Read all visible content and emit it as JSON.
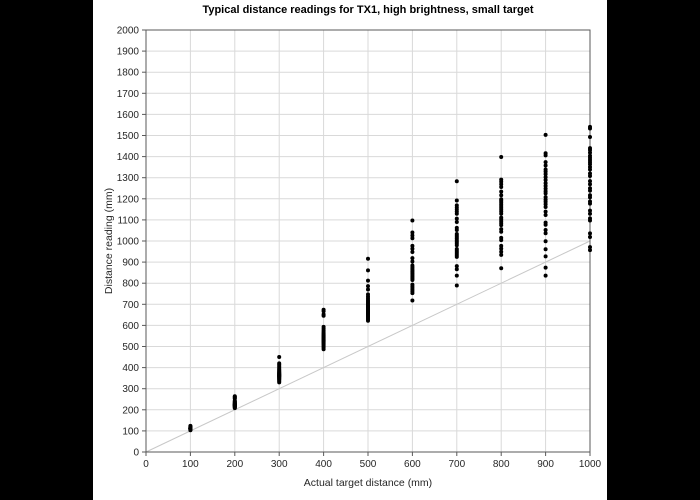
{
  "chart_data": {
    "type": "scatter",
    "title": "Typical distance readings for TX1, high brightness, small target",
    "xlabel": "Actual target distance (mm)",
    "ylabel": "Distance reading (mm)",
    "xlim": [
      0,
      1000
    ],
    "ylim": [
      0,
      2000
    ],
    "x_ticks": [
      0,
      100,
      200,
      300,
      400,
      500,
      600,
      700,
      800,
      900,
      1000
    ],
    "y_ticks": [
      0,
      100,
      200,
      300,
      400,
      500,
      600,
      700,
      800,
      900,
      1000,
      1100,
      1200,
      1300,
      1400,
      1500,
      1600,
      1700,
      1800,
      1900,
      2000
    ],
    "grid": true,
    "legend": "none",
    "colors": {
      "background": "#000000",
      "panel": "#ffffff",
      "grid": "#d9d9d9",
      "axis": "#595959",
      "marker": "#000000",
      "reference_line": "#c8c8c8"
    },
    "reference_line": {
      "name": "identity-line-y-equals-x",
      "from": [
        0,
        0
      ],
      "to": [
        1000,
        1000
      ]
    },
    "series": [
      {
        "name": "distance-readings",
        "groups": [
          {
            "x": 100,
            "readings": [
              103,
              105,
              107,
              108,
              109,
              110,
              110,
              111,
              111,
              112,
              112,
              113,
              113,
              114,
              114,
              115,
              116,
              117,
              119,
              121,
              124
            ]
          },
          {
            "x": 200,
            "readings": [
              208,
              211,
              213,
              215,
              217,
              219,
              220,
              221,
              222,
              223,
              224,
              225,
              226,
              227,
              228,
              230,
              232,
              234,
              237,
              240,
              243,
              253,
              257,
              261,
              264
            ]
          },
          {
            "x": 300,
            "readings": [
              330,
              336,
              341,
              345,
              348,
              351,
              354,
              356,
              358,
              360,
              362,
              364,
              366,
              368,
              370,
              372,
              375,
              378,
              381,
              385,
              389,
              394,
              400,
              407,
              414,
              420,
              450
            ]
          },
          {
            "x": 400,
            "readings": [
              487,
              494,
              500,
              506,
              511,
              515,
              519,
              522,
              525,
              528,
              531,
              534,
              537,
              540,
              543,
              546,
              550,
              554,
              558,
              563,
              569,
              576,
              584,
              593,
              646,
              652,
              667,
              674
            ]
          },
          {
            "x": 500,
            "readings": [
              622,
              629,
              635,
              641,
              646,
              651,
              655,
              659,
              663,
              667,
              671,
              675,
              679,
              683,
              687,
              691,
              696,
              701,
              707,
              713,
              720,
              728,
              737,
              747,
              770,
              786,
              812,
              861,
              916
            ]
          },
          {
            "x": 600,
            "readings": [
              718,
              753,
              761,
              769,
              777,
              785,
              793,
              815,
              821,
              827,
              833,
              839,
              845,
              851,
              857,
              863,
              870,
              877,
              884,
              903,
              919,
              948,
              963,
              977,
              1013,
              1026,
              1040,
              1097
            ]
          },
          {
            "x": 700,
            "readings": [
              789,
              836,
              866,
              881,
              925,
              933,
              941,
              948,
              955,
              962,
              980,
              988,
              996,
              1003,
              1011,
              1019,
              1026,
              1033,
              1052,
              1062,
              1090,
              1106,
              1129,
              1139,
              1149,
              1159,
              1169,
              1192,
              1283
            ]
          },
          {
            "x": 800,
            "readings": [
              871,
              934,
              949,
              964,
              977,
              1004,
              1015,
              1044,
              1056,
              1075,
              1085,
              1094,
              1103,
              1111,
              1129,
              1139,
              1148,
              1157,
              1166,
              1175,
              1184,
              1192,
              1198,
              1217,
              1234,
              1256,
              1269,
              1281,
              1291,
              1398
            ]
          },
          {
            "x": 900,
            "readings": [
              836,
              874,
              927,
              961,
              999,
              1037,
              1052,
              1077,
              1087,
              1123,
              1139,
              1161,
              1174,
              1186,
              1196,
              1208,
              1226,
              1236,
              1248,
              1261,
              1274,
              1289,
              1303,
              1317,
              1329,
              1339,
              1358,
              1374,
              1406,
              1416,
              1503
            ]
          },
          {
            "x": 1000,
            "readings": [
              957,
              971,
              1019,
              1036,
              1097,
              1107,
              1129,
              1144,
              1177,
              1187,
              1207,
              1217,
              1239,
              1250,
              1269,
              1284,
              1308,
              1320,
              1339,
              1351,
              1364,
              1374,
              1384,
              1394,
              1404,
              1419,
              1431,
              1440,
              1493,
              1533,
              1541
            ]
          }
        ]
      }
    ]
  }
}
